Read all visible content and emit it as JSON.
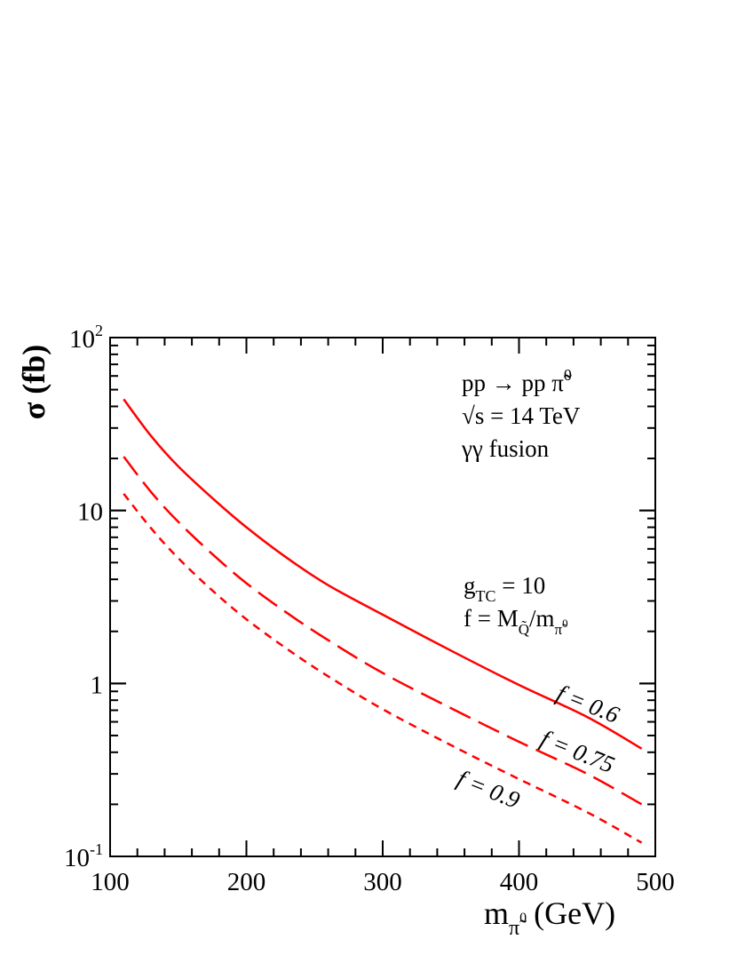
{
  "chart_data": {
    "type": "line",
    "title": "",
    "xlabel": "m",
    "xlabel_sub": "π̃",
    "xlabel_sub_sup": "0",
    "xlabel_unit": "(GeV)",
    "ylabel": "σ (fb)",
    "xlim": [
      100,
      500
    ],
    "ylim": [
      0.1,
      100
    ],
    "yscale": "log",
    "grid": false,
    "xticks": [
      {
        "value": 100,
        "label": "100"
      },
      {
        "value": 200,
        "label": "200"
      },
      {
        "value": 300,
        "label": "300"
      },
      {
        "value": 400,
        "label": "400"
      },
      {
        "value": 500,
        "label": "500"
      }
    ],
    "yticks": [
      {
        "value": 0.1,
        "label": "10",
        "sup": "-1"
      },
      {
        "value": 1,
        "label": "1",
        "sup": ""
      },
      {
        "value": 10,
        "label": "10",
        "sup": ""
      },
      {
        "value": 100,
        "label": "10",
        "sup": "2"
      }
    ],
    "annotations": {
      "process_a": "pp → pp ",
      "process_pi": "π̃",
      "process_sup": "0",
      "sqrt_s": "√s = 14 TeV",
      "fusion": "γγ fusion",
      "gtc_g": "g",
      "gtc_sub": "TC",
      "gtc_val": " = 10",
      "fdef_a": "f = M",
      "fdef_sub1": "Q̃",
      "fdef_b": "/m",
      "fdef_sub2": "π̃",
      "fdef_sub2_sup": "0"
    },
    "series": [
      {
        "name": "f = 0.6",
        "style": "solid",
        "color": "#ff0000",
        "x": [
          110,
          130,
          150,
          175,
          200,
          230,
          260,
          300,
          350,
          400,
          450,
          490
        ],
        "y": [
          44,
          27,
          18,
          11.8,
          8.0,
          5.3,
          3.7,
          2.5,
          1.55,
          0.98,
          0.64,
          0.42
        ]
      },
      {
        "name": "f = 0.75",
        "style": "dashed",
        "color": "#ff0000",
        "x": [
          110,
          130,
          150,
          175,
          200,
          230,
          260,
          300,
          350,
          400,
          450,
          490
        ],
        "y": [
          20.5,
          12.8,
          8.6,
          5.6,
          3.8,
          2.55,
          1.78,
          1.15,
          0.72,
          0.46,
          0.3,
          0.2
        ]
      },
      {
        "name": "f = 0.9",
        "style": "dotted",
        "color": "#ff0000",
        "x": [
          110,
          130,
          150,
          175,
          200,
          230,
          260,
          300,
          350,
          400,
          450,
          490
        ],
        "y": [
          12.5,
          7.9,
          5.3,
          3.45,
          2.35,
          1.58,
          1.1,
          0.71,
          0.44,
          0.28,
          0.18,
          0.12
        ]
      }
    ]
  }
}
